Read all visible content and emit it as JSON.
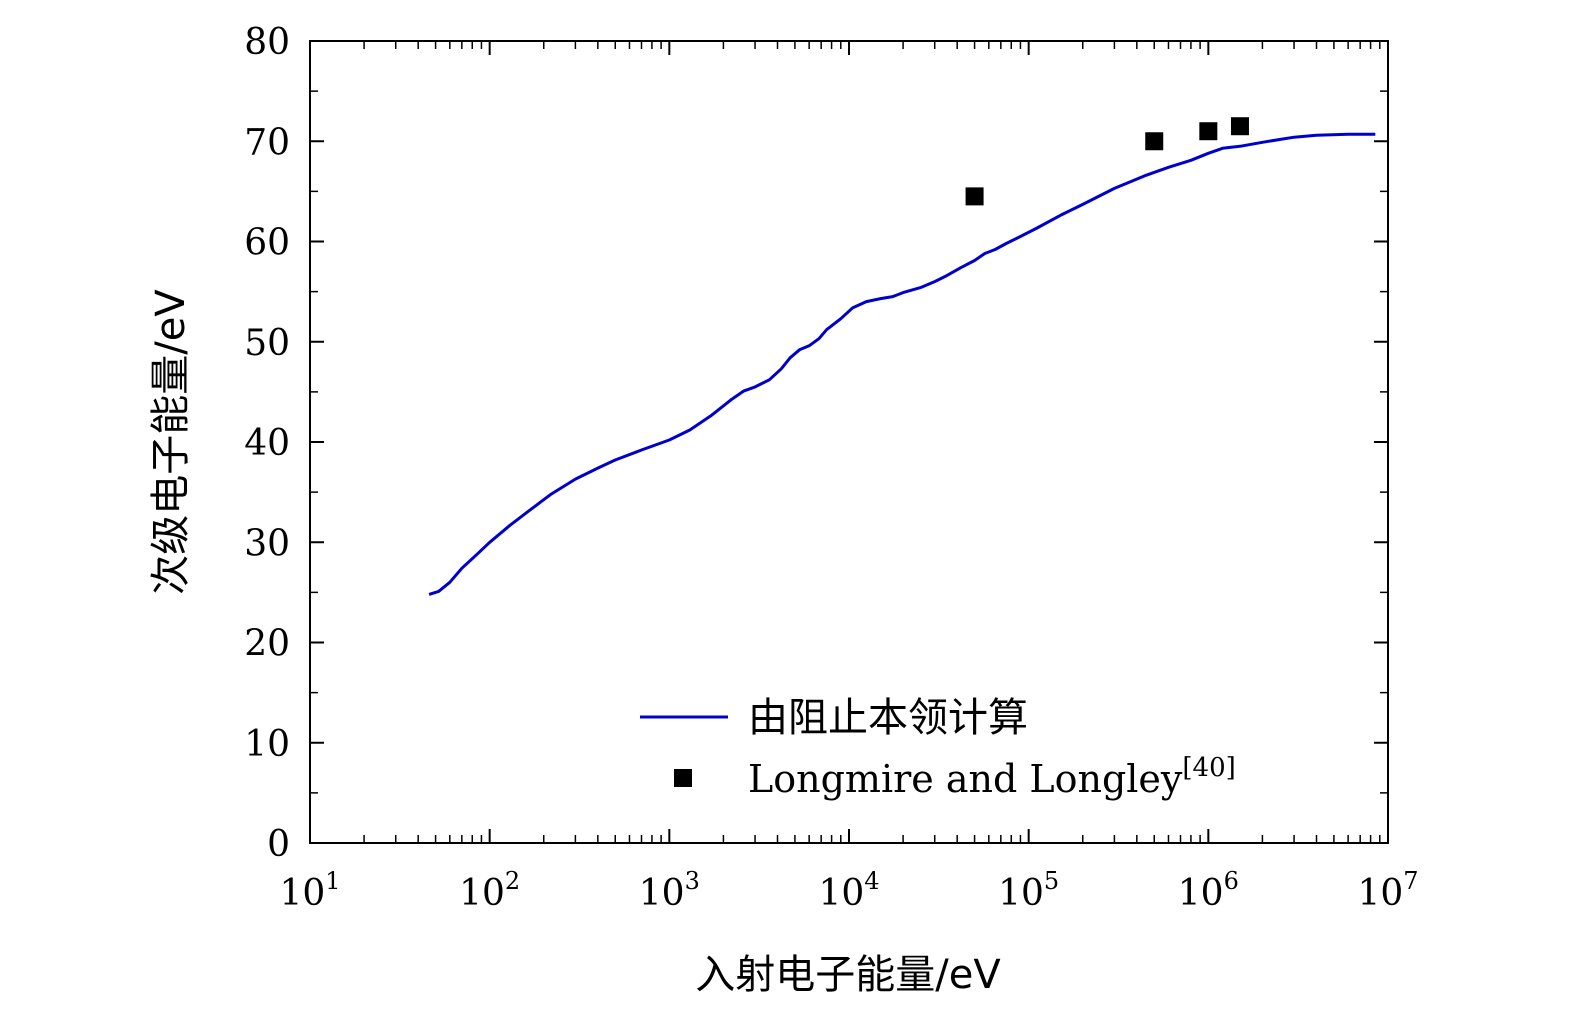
{
  "chart_data": {
    "type": "line",
    "x_scale": "log",
    "xlabel": "入射电子能量/eV",
    "ylabel": "次级电子能量/eV",
    "xlim": [
      10,
      10000000
    ],
    "ylim": [
      0,
      80
    ],
    "x_ticks": [
      {
        "value": 10,
        "base": "10",
        "exp": "1"
      },
      {
        "value": 100,
        "base": "10",
        "exp": "2"
      },
      {
        "value": 1000,
        "base": "10",
        "exp": "3"
      },
      {
        "value": 10000,
        "base": "10",
        "exp": "4"
      },
      {
        "value": 100000,
        "base": "10",
        "exp": "5"
      },
      {
        "value": 1000000,
        "base": "10",
        "exp": "6"
      },
      {
        "value": 10000000,
        "base": "10",
        "exp": "7"
      }
    ],
    "y_ticks": [
      "0",
      "10",
      "20",
      "30",
      "40",
      "50",
      "60",
      "70",
      "80"
    ],
    "grid": false,
    "legend_position": "bottom-center",
    "series": [
      {
        "name": "由阻止本领计算",
        "kind": "line",
        "color": "#0000cc",
        "points": [
          [
            46,
            24.8
          ],
          [
            52,
            25.1
          ],
          [
            60,
            26.0
          ],
          [
            70,
            27.4
          ],
          [
            85,
            28.8
          ],
          [
            100,
            30.0
          ],
          [
            130,
            31.7
          ],
          [
            170,
            33.3
          ],
          [
            220,
            34.8
          ],
          [
            300,
            36.3
          ],
          [
            400,
            37.4
          ],
          [
            500,
            38.2
          ],
          [
            700,
            39.2
          ],
          [
            1000,
            40.2
          ],
          [
            1300,
            41.2
          ],
          [
            1700,
            42.6
          ],
          [
            2200,
            44.2
          ],
          [
            2600,
            45.1
          ],
          [
            3000,
            45.5
          ],
          [
            3600,
            46.2
          ],
          [
            4200,
            47.3
          ],
          [
            4700,
            48.4
          ],
          [
            5300,
            49.2
          ],
          [
            6000,
            49.6
          ],
          [
            6800,
            50.3
          ],
          [
            7500,
            51.2
          ],
          [
            9000,
            52.3
          ],
          [
            10500,
            53.4
          ],
          [
            12500,
            54.0
          ],
          [
            15000,
            54.3
          ],
          [
            17500,
            54.5
          ],
          [
            20000,
            54.9
          ],
          [
            25000,
            55.4
          ],
          [
            30000,
            56.0
          ],
          [
            35000,
            56.6
          ],
          [
            42000,
            57.4
          ],
          [
            50000,
            58.1
          ],
          [
            57000,
            58.8
          ],
          [
            65000,
            59.2
          ],
          [
            75000,
            59.8
          ],
          [
            90000,
            60.5
          ],
          [
            110000,
            61.3
          ],
          [
            150000,
            62.6
          ],
          [
            200000,
            63.7
          ],
          [
            300000,
            65.3
          ],
          [
            450000,
            66.6
          ],
          [
            600000,
            67.4
          ],
          [
            800000,
            68.1
          ],
          [
            1000000,
            68.8
          ],
          [
            1200000,
            69.3
          ],
          [
            1500000,
            69.5
          ],
          [
            2000000,
            69.9
          ],
          [
            3000000,
            70.4
          ],
          [
            4000000,
            70.6
          ],
          [
            6000000,
            70.7
          ],
          [
            8500000,
            70.7
          ]
        ]
      },
      {
        "name": "Longmire and Longley",
        "name_ref": "[40]",
        "kind": "scatter",
        "marker": "square",
        "color": "#000000",
        "points": [
          [
            50000,
            64.5
          ],
          [
            500000,
            70.0
          ],
          [
            1000000,
            71.0
          ],
          [
            1500000,
            71.5
          ]
        ]
      }
    ]
  }
}
